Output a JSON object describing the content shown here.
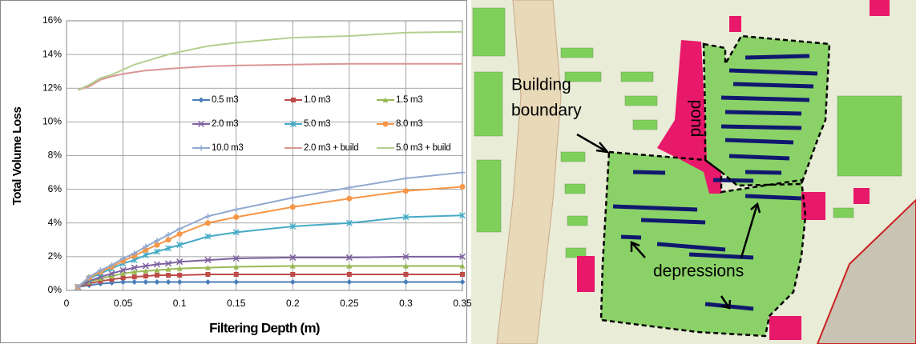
{
  "chart_data": {
    "type": "line",
    "xlabel": "Filtering Depth (m)",
    "ylabel": "Total Volume Loss",
    "x": [
      0.01,
      0.02,
      0.03,
      0.04,
      0.05,
      0.06,
      0.07,
      0.08,
      0.09,
      0.1,
      0.125,
      0.15,
      0.2,
      0.25,
      0.3,
      0.35
    ],
    "xlim": [
      0,
      0.35
    ],
    "xticks": [
      0,
      0.05,
      0.1,
      0.15,
      0.2,
      0.25,
      0.3,
      0.35
    ],
    "ylim": [
      0,
      16
    ],
    "yticks": [
      {
        "value": 0,
        "label": "0%"
      },
      {
        "value": 2,
        "label": "2%"
      },
      {
        "value": 4,
        "label": "4%"
      },
      {
        "value": 6,
        "label": "6%"
      },
      {
        "value": 8,
        "label": "8%"
      },
      {
        "value": 10,
        "label": "10%"
      },
      {
        "value": 12,
        "label": "12%"
      },
      {
        "value": 14,
        "label": "14%"
      },
      {
        "value": 16,
        "label": "16%"
      }
    ],
    "grid": true,
    "legend": "inside",
    "series": [
      {
        "name": "0.5 m3",
        "color": "#4a7ebb",
        "marker": "diamond",
        "values": [
          0.2,
          0.3,
          0.4,
          0.45,
          0.5,
          0.5,
          0.5,
          0.5,
          0.5,
          0.5,
          0.5,
          0.5,
          0.5,
          0.5,
          0.5,
          0.5
        ]
      },
      {
        "name": "1.0 m3",
        "color": "#be4b48",
        "marker": "square",
        "values": [
          0.2,
          0.4,
          0.55,
          0.65,
          0.75,
          0.8,
          0.85,
          0.9,
          0.9,
          0.9,
          0.95,
          0.95,
          0.95,
          0.95,
          0.95,
          0.95
        ]
      },
      {
        "name": "1.5 m3",
        "color": "#98b954",
        "marker": "triangle",
        "values": [
          0.2,
          0.5,
          0.7,
          0.85,
          1.0,
          1.1,
          1.15,
          1.2,
          1.25,
          1.3,
          1.35,
          1.4,
          1.45,
          1.45,
          1.45,
          1.45
        ]
      },
      {
        "name": "2.0 m3",
        "color": "#7d60a0",
        "marker": "x",
        "values": [
          0.2,
          0.55,
          0.8,
          1.0,
          1.2,
          1.35,
          1.45,
          1.55,
          1.6,
          1.7,
          1.8,
          1.9,
          1.95,
          1.95,
          2.0,
          2.0
        ]
      },
      {
        "name": "5.0 m3",
        "color": "#46aac5",
        "marker": "asterisk",
        "values": [
          0.2,
          0.7,
          1.0,
          1.3,
          1.6,
          1.8,
          2.1,
          2.3,
          2.5,
          2.7,
          3.2,
          3.45,
          3.8,
          4.0,
          4.35,
          4.45
        ]
      },
      {
        "name": "8.0 m3",
        "color": "#f79646",
        "marker": "circle",
        "values": [
          0.2,
          0.75,
          1.1,
          1.4,
          1.75,
          2.05,
          2.4,
          2.7,
          3.0,
          3.35,
          4.0,
          4.35,
          4.95,
          5.45,
          5.9,
          6.15
        ]
      },
      {
        "name": "10.0 m3",
        "color": "#92a9cf",
        "marker": "plus",
        "values": [
          0.2,
          0.8,
          1.2,
          1.5,
          1.9,
          2.2,
          2.6,
          2.95,
          3.3,
          3.65,
          4.4,
          4.8,
          5.5,
          6.1,
          6.65,
          7.0
        ]
      },
      {
        "name": "2.0 m3 + build",
        "color": "#d99694",
        "marker": "none",
        "values": [
          11.9,
          12.1,
          12.5,
          12.7,
          12.85,
          12.95,
          13.05,
          13.1,
          13.15,
          13.2,
          13.3,
          13.35,
          13.4,
          13.45,
          13.45,
          13.45
        ]
      },
      {
        "name": "5.0 m3 + build",
        "color": "#b3cf8f",
        "marker": "none",
        "values": [
          11.9,
          12.2,
          12.6,
          12.8,
          13.1,
          13.4,
          13.6,
          13.8,
          14.0,
          14.15,
          14.5,
          14.7,
          15.0,
          15.1,
          15.3,
          15.35
        ]
      }
    ]
  },
  "map": {
    "labels": [
      "Building",
      "boundary",
      "pond",
      "depressions"
    ]
  }
}
